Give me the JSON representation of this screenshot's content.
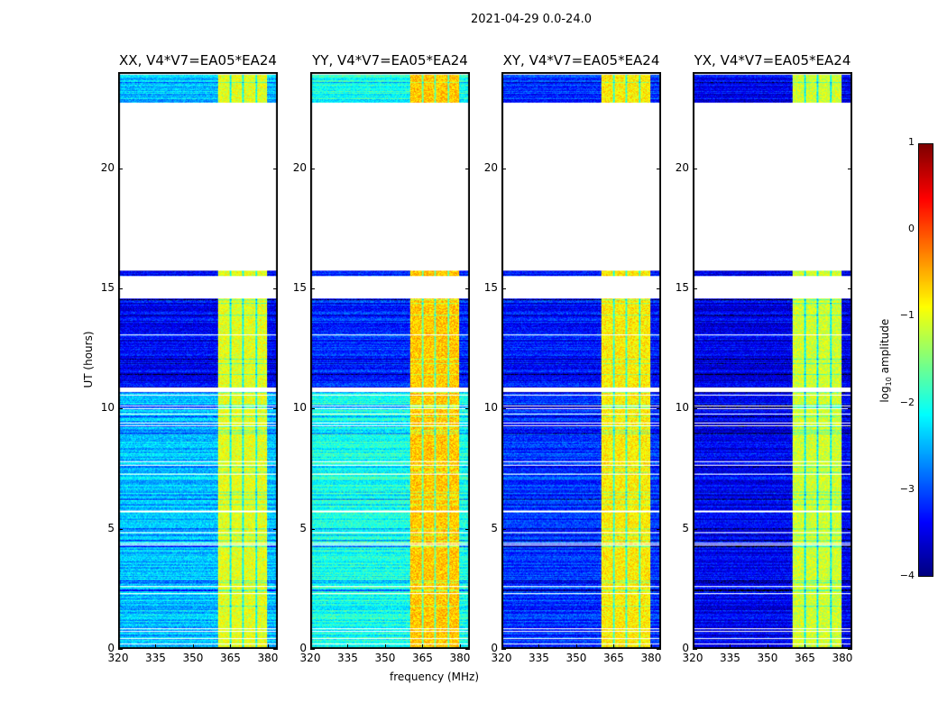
{
  "chart_data": {
    "type": "heatmap",
    "title": "2021-04-29 0.0-24.0",
    "xlabel": "frequency (MHz)",
    "ylabel": "UT (hours)",
    "xlim": [
      320,
      384
    ],
    "ylim": [
      0,
      24
    ],
    "xticks": [
      "320",
      "335",
      "350",
      "365",
      "380"
    ],
    "xtick_values": [
      320,
      335,
      350,
      365,
      380
    ],
    "yticks": [
      "0",
      "5",
      "10",
      "15",
      "20"
    ],
    "ytick_values": [
      0,
      5,
      10,
      15,
      20
    ],
    "colormap": "jet",
    "colorbar": {
      "label": "log10 amplitude",
      "label_main": "log",
      "label_sub": "10",
      "label_rest": " amplitude",
      "range": [
        -4,
        1
      ],
      "ticks": [
        "1",
        "0",
        "−1",
        "−2",
        "−3",
        "−4"
      ],
      "tick_values": [
        1,
        0,
        -1,
        -2,
        -3,
        -4
      ]
    },
    "data_segments_hours": [
      [
        0,
        10.7
      ],
      [
        10.9,
        14.6
      ],
      [
        15.55,
        15.75
      ],
      [
        22.8,
        24
      ]
    ],
    "bright_band_mhz": [
      360,
      380
    ],
    "panels": [
      {
        "title": "XX, V4*V7=EA05*EA24",
        "background_level_early": -2.4,
        "background_level_mid": -3.4,
        "band_level": -1.0
      },
      {
        "title": "YY, V4*V7=EA05*EA24",
        "background_level_early": -2.0,
        "background_level_mid": -3.2,
        "band_level": -0.6
      },
      {
        "title": "XY, V4*V7=EA05*EA24",
        "background_level_early": -3.1,
        "background_level_mid": -3.3,
        "band_level": -0.8
      },
      {
        "title": "YX, V4*V7=EA05*EA24",
        "background_level_early": -3.4,
        "background_level_mid": -3.5,
        "band_level": -1.1
      }
    ]
  }
}
